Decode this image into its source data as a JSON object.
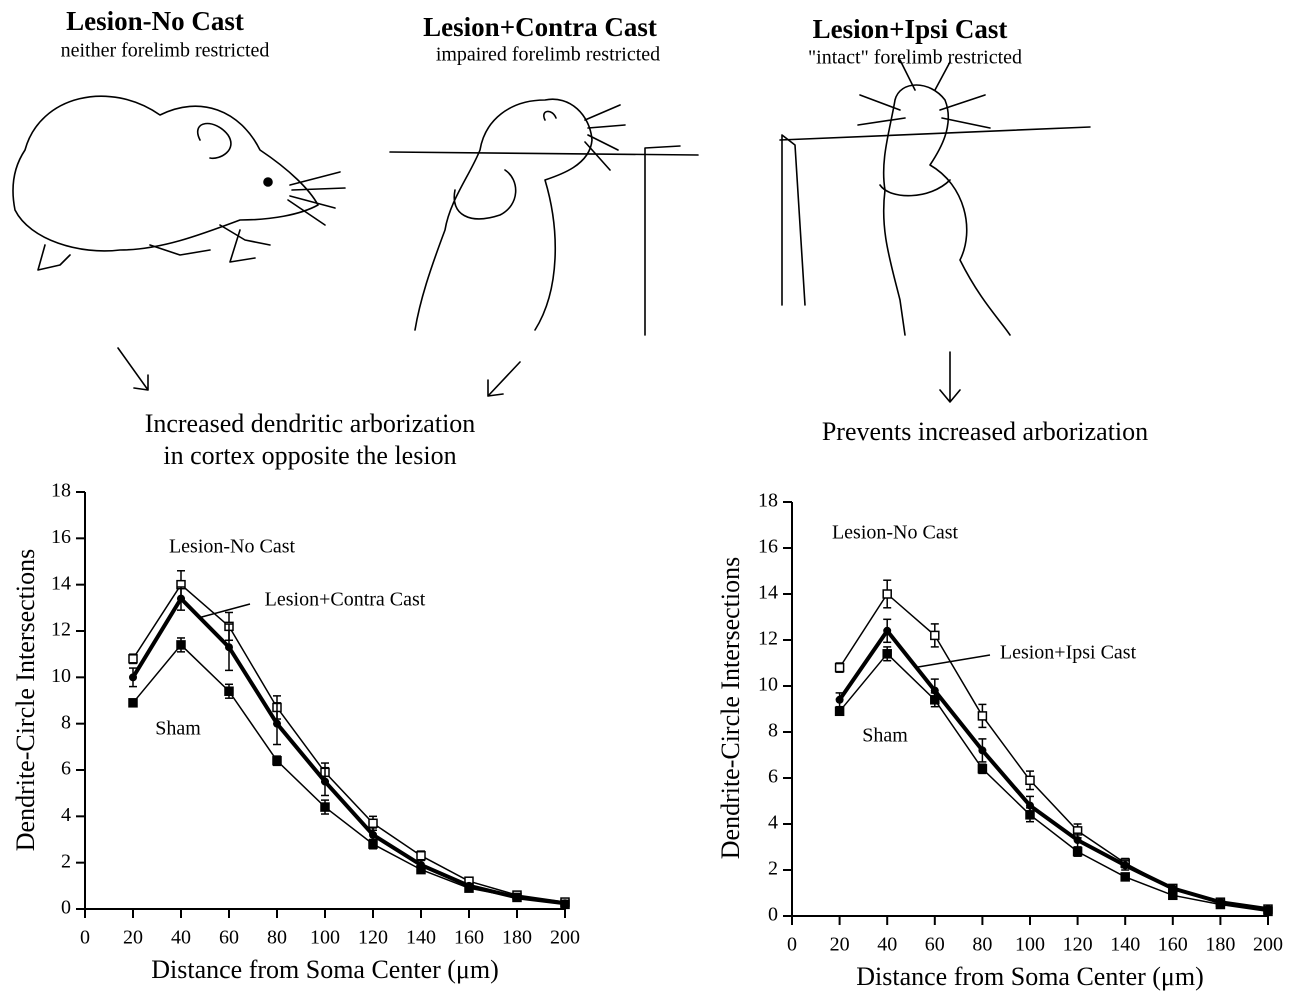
{
  "panels": [
    {
      "title": "Lesion-No Cast",
      "subtitle": "neither forelimb restricted"
    },
    {
      "title": "Lesion+Contra Cast",
      "subtitle": "impaired forelimb restricted"
    },
    {
      "title": "Lesion+Ipsi Cast",
      "subtitle": "\"intact\" forelimb restricted"
    }
  ],
  "conclusions": [
    [
      "Increased dendritic arborization",
      "in cortex opposite the lesion"
    ],
    [
      "Prevents increased arborization"
    ]
  ],
  "chart_data": [
    {
      "type": "line",
      "x_label": "Distance from Soma Center (μm)",
      "y_label": "Dendrite-Circle Intersections",
      "x": [
        20,
        40,
        60,
        80,
        100,
        120,
        140,
        160,
        180,
        200
      ],
      "xlim": [
        0,
        200
      ],
      "xticks": [
        0,
        20,
        40,
        60,
        80,
        100,
        120,
        140,
        160,
        180,
        200
      ],
      "ylim": [
        0,
        18
      ],
      "yticks": [
        0,
        2,
        4,
        6,
        8,
        10,
        12,
        14,
        16,
        18
      ],
      "series": [
        {
          "name": "Lesion-No Cast",
          "color": "#000000",
          "marker": "open-square",
          "line_width": 1.5,
          "values": [
            10.8,
            14.0,
            12.2,
            8.7,
            5.9,
            3.7,
            2.3,
            1.2,
            0.6,
            0.3
          ],
          "errors": [
            0.2,
            0.6,
            0.6,
            0.5,
            0.4,
            0.3,
            0.2,
            0.1,
            0.1,
            0.1
          ]
        },
        {
          "name": "Lesion+Contra Cast",
          "color": "#000000",
          "marker": "filled-circle",
          "line_width": 4,
          "values": [
            10.0,
            13.4,
            11.3,
            8.0,
            5.5,
            3.2,
            1.9,
            1.0,
            0.5,
            0.25
          ],
          "errors": [
            0.4,
            0.5,
            1.0,
            0.9,
            0.6,
            0.3,
            0.2,
            0.1,
            0.1,
            0.1
          ]
        },
        {
          "name": "Sham",
          "color": "#000000",
          "marker": "filled-square",
          "line_width": 1.5,
          "values": [
            8.9,
            11.4,
            9.4,
            6.4,
            4.4,
            2.8,
            1.7,
            0.9,
            0.5,
            0.2
          ],
          "errors": [
            0.1,
            0.3,
            0.3,
            0.2,
            0.3,
            0.2,
            0.1,
            0.1,
            0.1,
            0.1
          ]
        }
      ]
    },
    {
      "type": "line",
      "x_label": "Distance from Soma Center (μm)",
      "y_label": "Dendrite-Circle Intersections",
      "x": [
        20,
        40,
        60,
        80,
        100,
        120,
        140,
        160,
        180,
        200
      ],
      "xlim": [
        0,
        200
      ],
      "xticks": [
        0,
        20,
        40,
        60,
        80,
        100,
        120,
        140,
        160,
        180,
        200
      ],
      "ylim": [
        0,
        18
      ],
      "yticks": [
        0,
        2,
        4,
        6,
        8,
        10,
        12,
        14,
        16,
        18
      ],
      "series": [
        {
          "name": "Lesion-No Cast",
          "color": "#000000",
          "marker": "open-square",
          "line_width": 1.5,
          "values": [
            10.8,
            14.0,
            12.2,
            8.7,
            5.9,
            3.7,
            2.3,
            1.2,
            0.6,
            0.3
          ],
          "errors": [
            0.2,
            0.6,
            0.5,
            0.5,
            0.4,
            0.3,
            0.2,
            0.1,
            0.1,
            0.1
          ]
        },
        {
          "name": "Lesion+Ipsi Cast",
          "color": "#000000",
          "marker": "filled-circle",
          "line_width": 4,
          "values": [
            9.4,
            12.4,
            9.8,
            7.2,
            4.8,
            3.3,
            2.2,
            1.2,
            0.6,
            0.3
          ],
          "errors": [
            0.3,
            0.5,
            0.5,
            0.5,
            0.4,
            0.3,
            0.2,
            0.1,
            0.1,
            0.1
          ]
        },
        {
          "name": "Sham",
          "color": "#000000",
          "marker": "filled-square",
          "line_width": 1.5,
          "values": [
            8.9,
            11.4,
            9.4,
            6.4,
            4.4,
            2.8,
            1.7,
            0.9,
            0.5,
            0.2
          ],
          "errors": [
            0.1,
            0.3,
            0.3,
            0.2,
            0.3,
            0.2,
            0.1,
            0.1,
            0.1,
            0.1
          ]
        }
      ]
    }
  ]
}
